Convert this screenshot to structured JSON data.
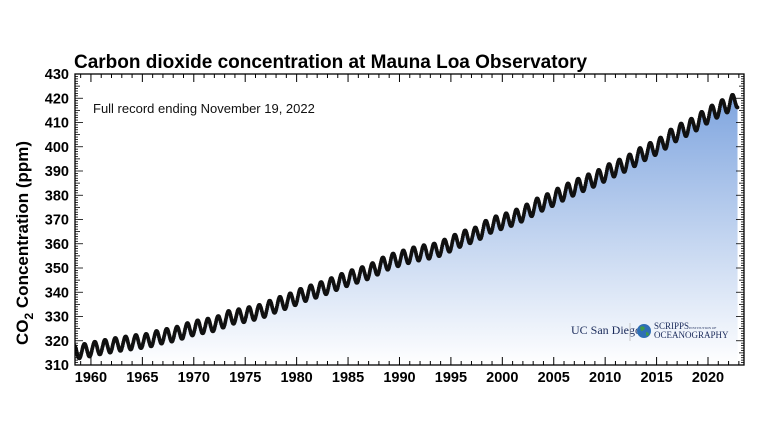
{
  "chart_data": {
    "type": "scatter",
    "title": "Carbon dioxide concentration at Mauna Loa Observatory",
    "subtitle": "Full record ending November 19, 2022",
    "ylabel_main": "CO",
    "ylabel_sub": "2",
    "ylabel_rest": " Concentration (ppm)",
    "xlim": [
      1958.45,
      2023.5
    ],
    "ylim": [
      310,
      430
    ],
    "x_ticks": [
      1960,
      1965,
      1970,
      1975,
      1980,
      1985,
      1990,
      1995,
      2000,
      2005,
      2010,
      2015,
      2020
    ],
    "y_ticks": [
      310,
      320,
      330,
      340,
      350,
      360,
      370,
      380,
      390,
      400,
      410,
      420,
      430
    ],
    "x_tick_labels": [
      "1960",
      "1965",
      "1970",
      "1975",
      "1980",
      "1985",
      "1990",
      "1995",
      "2000",
      "2005",
      "2010",
      "2015",
      "2020"
    ],
    "y_tick_labels": [
      "310",
      "320",
      "330",
      "340",
      "350",
      "360",
      "370",
      "380",
      "390",
      "400",
      "410",
      "420",
      "430"
    ],
    "grid": false,
    "marker_color": "#111111",
    "fill_gradient": [
      "#ffffff",
      "#7fa5df"
    ],
    "seasonal_amplitude_ppm": 3.1,
    "annual_mean": {
      "years": [
        1958,
        1959,
        1960,
        1961,
        1962,
        1963,
        1964,
        1965,
        1966,
        1967,
        1968,
        1969,
        1970,
        1971,
        1972,
        1973,
        1974,
        1975,
        1976,
        1977,
        1978,
        1979,
        1980,
        1981,
        1982,
        1983,
        1984,
        1985,
        1986,
        1987,
        1988,
        1989,
        1990,
        1991,
        1992,
        1993,
        1994,
        1995,
        1996,
        1997,
        1998,
        1999,
        2000,
        2001,
        2002,
        2003,
        2004,
        2005,
        2006,
        2007,
        2008,
        2009,
        2010,
        2011,
        2012,
        2013,
        2014,
        2015,
        2016,
        2017,
        2018,
        2019,
        2020,
        2021,
        2022
      ],
      "ppm": [
        315.3,
        315.98,
        316.91,
        317.64,
        318.45,
        318.99,
        319.62,
        320.04,
        321.37,
        322.18,
        323.05,
        324.62,
        325.68,
        326.32,
        327.46,
        329.68,
        330.19,
        331.12,
        332.03,
        333.84,
        335.41,
        336.84,
        338.76,
        340.12,
        341.48,
        343.15,
        344.87,
        346.35,
        347.61,
        349.31,
        351.69,
        353.2,
        354.45,
        355.7,
        356.54,
        357.21,
        358.96,
        360.97,
        362.74,
        363.88,
        366.84,
        368.54,
        369.71,
        371.32,
        373.45,
        375.98,
        377.7,
        379.98,
        382.09,
        384.02,
        385.83,
        387.64,
        390.1,
        391.85,
        394.06,
        396.74,
        398.81,
        401.01,
        404.41,
        406.76,
        408.72,
        411.66,
        414.24,
        416.45,
        418.56
      ]
    }
  },
  "logos": {
    "ucsd": "UC San Diego",
    "scripps_line1": "SCRIPPS",
    "scripps_small": "INSTITUTION OF",
    "scripps_line2": "OCEANOGRAPHY"
  }
}
